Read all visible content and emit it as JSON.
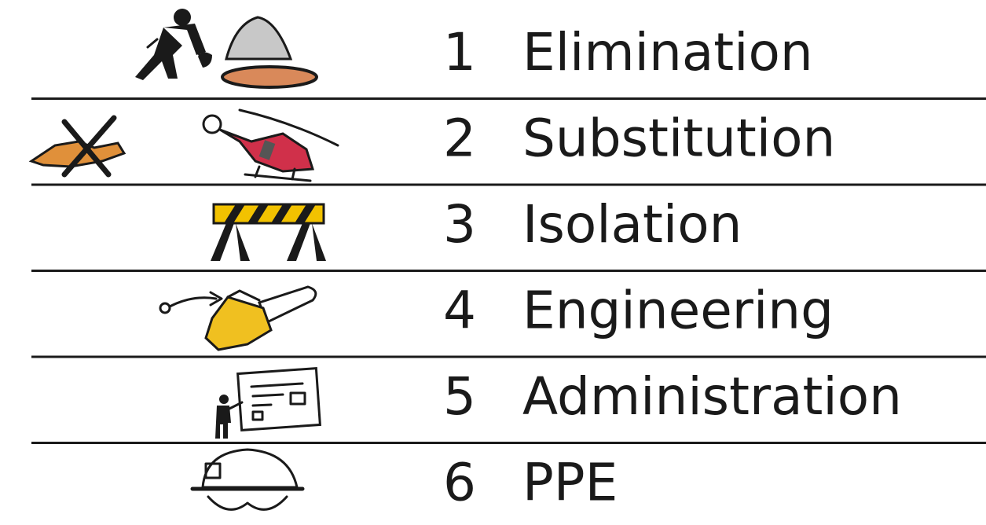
{
  "rows": [
    {
      "number": "1",
      "label": "Elimination"
    },
    {
      "number": "2",
      "label": "Substitution"
    },
    {
      "number": "3",
      "label": "Isolation"
    },
    {
      "number": "4",
      "label": "Engineering"
    },
    {
      "number": "5",
      "label": "Administration"
    },
    {
      "number": "6",
      "label": "PPE"
    }
  ]
}
